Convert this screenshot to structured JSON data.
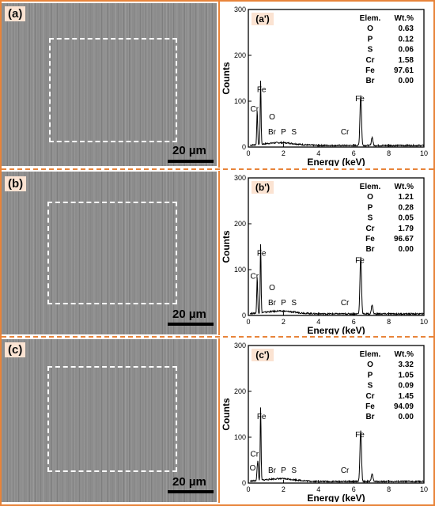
{
  "panels": [
    {
      "sem_label": "(a)",
      "scale_label": "20 µm",
      "chart_data": {
        "type": "line",
        "label": "(a')",
        "xlabel": "Energy (keV)",
        "ylabel": "Counts",
        "xlim": [
          0,
          10
        ],
        "ylim": [
          0,
          300
        ],
        "xticks": [
          0,
          2,
          4,
          6,
          8,
          10
        ],
        "yticks": [
          0,
          100,
          200,
          300
        ],
        "peaks": [
          {
            "name": "Cr",
            "x": 0.5,
            "y": 60
          },
          {
            "name": "Fe",
            "x": 0.7,
            "y": 138
          },
          {
            "name": "O",
            "x": 0.52,
            "y": 20
          },
          {
            "name": "Fe",
            "x": 6.4,
            "y": 110
          },
          {
            "name": "Fe",
            "x": 7.05,
            "y": 18
          }
        ],
        "peak_labels": [
          {
            "text": "Cr",
            "x": 0.35,
            "y": 78
          },
          {
            "text": "Fe",
            "x": 0.75,
            "y": 120
          },
          {
            "text": "O",
            "x": 1.35,
            "y": 60
          },
          {
            "text": "Br",
            "x": 1.35,
            "y": 28
          },
          {
            "text": "P",
            "x": 2.0,
            "y": 28
          },
          {
            "text": "S",
            "x": 2.6,
            "y": 28
          },
          {
            "text": "Cr",
            "x": 5.5,
            "y": 28
          },
          {
            "text": "Fe",
            "x": 6.35,
            "y": 100
          }
        ],
        "table": {
          "header": [
            "Elem.",
            "Wt.%"
          ],
          "rows": [
            [
              "O",
              "0.63"
            ],
            [
              "P",
              "0.12"
            ],
            [
              "S",
              "0.06"
            ],
            [
              "Cr",
              "1.58"
            ],
            [
              "Fe",
              "97.61"
            ],
            [
              "Br",
              "0.00"
            ]
          ]
        }
      }
    },
    {
      "sem_label": "(b)",
      "scale_label": "20 µm",
      "chart_data": {
        "type": "line",
        "label": "(b')",
        "xlabel": "Energy (keV)",
        "ylabel": "Counts",
        "xlim": [
          0,
          10
        ],
        "ylim": [
          0,
          300
        ],
        "xticks": [
          0,
          2,
          4,
          6,
          8,
          10
        ],
        "yticks": [
          0,
          100,
          200,
          300
        ],
        "peaks": [
          {
            "name": "Cr",
            "x": 0.5,
            "y": 62
          },
          {
            "name": "Fe",
            "x": 0.7,
            "y": 150
          },
          {
            "name": "O",
            "x": 0.52,
            "y": 22
          },
          {
            "name": "Fe",
            "x": 6.4,
            "y": 125
          },
          {
            "name": "Fe",
            "x": 7.05,
            "y": 20
          }
        ],
        "peak_labels": [
          {
            "text": "Cr",
            "x": 0.35,
            "y": 80
          },
          {
            "text": "Fe",
            "x": 0.75,
            "y": 130
          },
          {
            "text": "O",
            "x": 1.35,
            "y": 55
          },
          {
            "text": "Br",
            "x": 1.35,
            "y": 22
          },
          {
            "text": "P",
            "x": 2.0,
            "y": 22
          },
          {
            "text": "S",
            "x": 2.6,
            "y": 22
          },
          {
            "text": "Cr",
            "x": 5.5,
            "y": 22
          },
          {
            "text": "Fe",
            "x": 6.35,
            "y": 115
          }
        ],
        "table": {
          "header": [
            "Elem.",
            "Wt.%"
          ],
          "rows": [
            [
              "O",
              "1.21"
            ],
            [
              "P",
              "0.28"
            ],
            [
              "S",
              "0.05"
            ],
            [
              "Cr",
              "1.79"
            ],
            [
              "Fe",
              "96.67"
            ],
            [
              "Br",
              "0.00"
            ]
          ]
        }
      }
    },
    {
      "sem_label": "(c)",
      "scale_label": "20 µm",
      "chart_data": {
        "type": "line",
        "label": "(c')",
        "xlabel": "Energy (keV)",
        "ylabel": "Counts",
        "xlim": [
          0,
          10
        ],
        "ylim": [
          0,
          300
        ],
        "xticks": [
          0,
          2,
          4,
          6,
          8,
          10
        ],
        "yticks": [
          0,
          100,
          200,
          300
        ],
        "peaks": [
          {
            "name": "O",
            "x": 0.5,
            "y": 22
          },
          {
            "name": "Cr",
            "x": 0.55,
            "y": 40
          },
          {
            "name": "Fe",
            "x": 0.7,
            "y": 158
          },
          {
            "name": "Fe",
            "x": 6.4,
            "y": 112
          },
          {
            "name": "Fe",
            "x": 7.05,
            "y": 18
          }
        ],
        "peak_labels": [
          {
            "text": "Cr",
            "x": 0.35,
            "y": 58
          },
          {
            "text": "Fe",
            "x": 0.75,
            "y": 140
          },
          {
            "text": "O",
            "x": 0.25,
            "y": 28
          },
          {
            "text": "Br",
            "x": 1.35,
            "y": 22
          },
          {
            "text": "P",
            "x": 2.0,
            "y": 22
          },
          {
            "text": "S",
            "x": 2.6,
            "y": 22
          },
          {
            "text": "Cr",
            "x": 5.5,
            "y": 22
          },
          {
            "text": "Fe",
            "x": 6.35,
            "y": 100
          }
        ],
        "table": {
          "header": [
            "Elem.",
            "Wt.%"
          ],
          "rows": [
            [
              "O",
              "3.32"
            ],
            [
              "P",
              "1.05"
            ],
            [
              "S",
              "0.09"
            ],
            [
              "Cr",
              "1.45"
            ],
            [
              "Fe",
              "94.09"
            ],
            [
              "Br",
              "0.00"
            ]
          ]
        }
      }
    }
  ]
}
